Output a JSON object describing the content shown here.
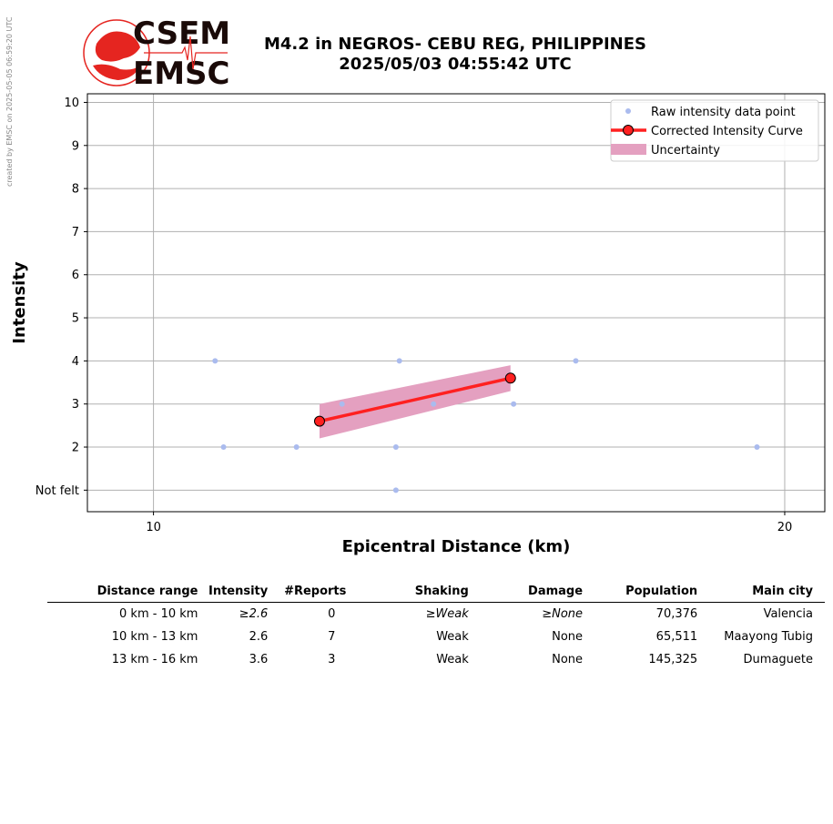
{
  "credit": "created by EMSC on 2025-05-05 06:59:20 UTC",
  "logo": {
    "top": "CSEM",
    "bottom": "EMSC",
    "accent": "#e52520",
    "dark": "#1a0a08"
  },
  "title": {
    "line1": "M4.2 in NEGROS- CEBU REG, PHILIPPINES",
    "line2": "2025/05/03 04:55:42 UTC"
  },
  "chart_data": {
    "type": "scatter",
    "xlabel": "Epicentral Distance (km)",
    "ylabel": "Intensity",
    "xscale": "log",
    "xlim": [
      9.3,
      20.9
    ],
    "ylim": [
      0.5,
      10.2
    ],
    "xticks": [
      10,
      20
    ],
    "yticks": [
      1,
      2,
      3,
      4,
      5,
      6,
      7,
      8,
      9,
      10
    ],
    "ytick_labels": [
      "Not felt",
      "2",
      "3",
      "4",
      "5",
      "6",
      "7",
      "8",
      "9",
      "10"
    ],
    "grid": true,
    "legend_position": "top-right",
    "legend": [
      "Raw intensity data point",
      "Corrected Intensity Curve",
      "Uncertainty"
    ],
    "colors": {
      "raw": "#aabbee",
      "curve": "#ff2020",
      "band": "#e4a0c0",
      "grid": "#b0b0b0"
    },
    "raw_points": [
      {
        "x": 10.7,
        "y": 4
      },
      {
        "x": 10.8,
        "y": 2
      },
      {
        "x": 11.7,
        "y": 2
      },
      {
        "x": 12.3,
        "y": 3
      },
      {
        "x": 13.05,
        "y": 2
      },
      {
        "x": 13.05,
        "y": 1
      },
      {
        "x": 13.1,
        "y": 4
      },
      {
        "x": 13.6,
        "y": 3
      },
      {
        "x": 14.85,
        "y": 3
      },
      {
        "x": 15.9,
        "y": 4
      },
      {
        "x": 19.4,
        "y": 2
      }
    ],
    "curve": {
      "x": [
        12.0,
        14.8
      ],
      "y": [
        2.6,
        3.6
      ]
    },
    "uncertainty": {
      "x": [
        12.0,
        14.8
      ],
      "lower": [
        2.2,
        3.3
      ],
      "upper": [
        3.0,
        3.9
      ]
    }
  },
  "table": {
    "headers": [
      "Distance range",
      "Intensity",
      "#Reports",
      "Shaking",
      "Damage",
      "Population",
      "Main city"
    ],
    "rows": [
      [
        "0 km -   10 km",
        "≥2.6",
        "0",
        "≥Weak",
        "≥None",
        "70,376",
        "Valencia"
      ],
      [
        "10 km -   13 km",
        "2.6",
        "7",
        "Weak",
        "None",
        "65,511",
        "Maayong Tubig"
      ],
      [
        "13 km -   16 km",
        "3.6",
        "3",
        "Weak",
        "None",
        "145,325",
        "Dumaguete"
      ]
    ]
  }
}
